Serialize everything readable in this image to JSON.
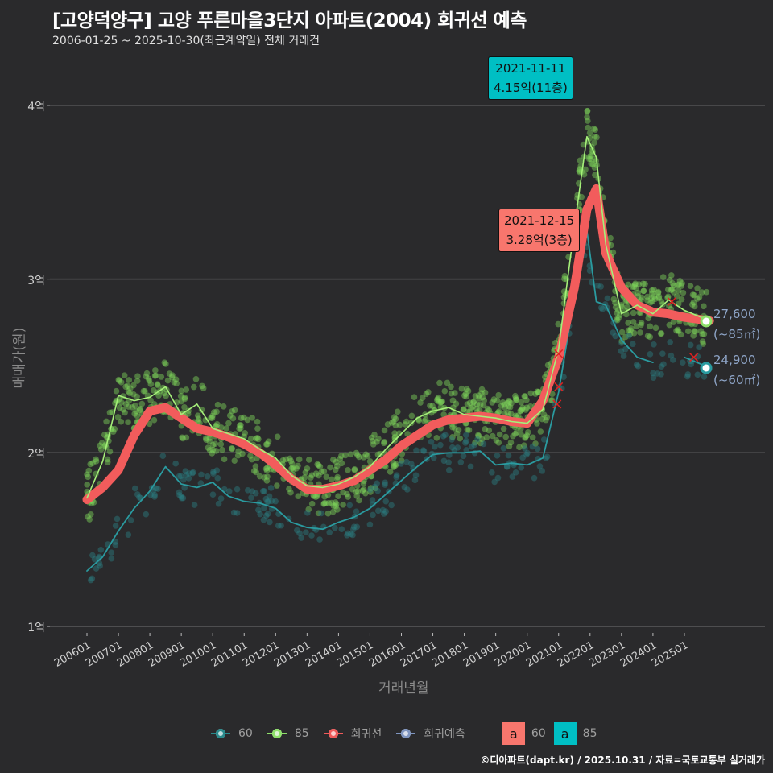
{
  "header": {
    "title": "[고양덕양구] 고양 푸른마을3단지 아파트(2004) 회귀선 예측",
    "subtitle": "2006-01-25 ~ 2025-10-30(최근계약일) 전체 거래건"
  },
  "axes": {
    "y_label": "매매가(원)",
    "x_label": "거래년월",
    "y_ticks": [
      "4억",
      "3억",
      "2억",
      "1억"
    ],
    "x_ticks": [
      "200601",
      "200701",
      "200801",
      "200901",
      "201001",
      "201101",
      "201201",
      "201301",
      "201401",
      "201501",
      "201601",
      "201701",
      "201801",
      "201901",
      "202001",
      "202101",
      "202201",
      "202301",
      "202401",
      "202501"
    ]
  },
  "callouts": {
    "max85": {
      "date": "2021-11-11",
      "value": "4.15억(11층)",
      "color": "#00bfc4"
    },
    "max60": {
      "date": "2021-12-15",
      "value": "3.28억(3층)",
      "color": "#f8766d"
    }
  },
  "end_labels": {
    "pred85": {
      "value": "27,600",
      "area": "(~85㎡)"
    },
    "pred60": {
      "value": "24,900",
      "area": "(~60㎡)"
    }
  },
  "legend": {
    "items": [
      {
        "label": "60",
        "color": "#2a8a8c"
      },
      {
        "label": "85",
        "color": "#8ee06a"
      },
      {
        "label": "회귀선",
        "color": "#f05a5a"
      },
      {
        "label": "회귀예측",
        "color": "#7f95c0"
      }
    ],
    "label_boxes": [
      {
        "glyph": "a",
        "label": "60",
        "color": "#f8766d"
      },
      {
        "glyph": "a",
        "label": "85",
        "color": "#00bfc4"
      }
    ]
  },
  "footer": "©디아파트(dapt.kr) / 2025.10.31 / 자료=국토교통부 실거래가",
  "chart_data": {
    "type": "line",
    "title": "[고양덕양구] 고양 푸른마을3단지 아파트(2004) 회귀선 예측",
    "subtitle": "2006-01-25 ~ 2025-10-30(최근계약일) 전체 거래건",
    "xlabel": "거래년월",
    "ylabel": "매매가(원)",
    "ylim": [
      1.0,
      4.25
    ],
    "y_unit": "억",
    "grid": true,
    "legend_position": "bottom",
    "x": [
      2006.0,
      2006.5,
      2007.0,
      2007.5,
      2008.0,
      2008.5,
      2009.0,
      2009.5,
      2010.0,
      2010.5,
      2011.0,
      2011.5,
      2012.0,
      2012.5,
      2013.0,
      2013.5,
      2014.0,
      2014.5,
      2015.0,
      2015.5,
      2016.0,
      2016.5,
      2017.0,
      2017.5,
      2018.0,
      2018.5,
      2019.0,
      2019.5,
      2020.0,
      2020.5,
      2021.0,
      2021.5,
      2021.9,
      2022.2,
      2022.5,
      2023.0,
      2023.5,
      2024.0,
      2024.5,
      2025.0,
      2025.8
    ],
    "series": [
      {
        "name": "회귀선",
        "values": [
          1.73,
          1.8,
          1.9,
          2.1,
          2.24,
          2.26,
          2.2,
          2.14,
          2.12,
          2.09,
          2.05,
          2.0,
          1.93,
          1.85,
          1.79,
          1.79,
          1.81,
          1.84,
          1.9,
          1.96,
          2.04,
          2.1,
          2.16,
          2.19,
          2.2,
          2.21,
          2.2,
          2.18,
          2.17,
          2.3,
          2.55,
          2.95,
          3.4,
          3.52,
          3.15,
          2.95,
          2.85,
          2.81,
          2.8,
          2.78,
          2.76
        ]
      },
      {
        "name": "85",
        "values": [
          1.74,
          1.95,
          2.33,
          2.3,
          2.32,
          2.38,
          2.22,
          2.28,
          2.14,
          2.11,
          2.08,
          2.02,
          1.97,
          1.87,
          1.81,
          1.8,
          1.82,
          1.86,
          1.92,
          2.02,
          2.11,
          2.2,
          2.24,
          2.26,
          2.22,
          2.21,
          2.2,
          2.18,
          2.17,
          2.25,
          2.6,
          3.3,
          3.82,
          3.7,
          3.2,
          2.8,
          2.85,
          2.8,
          2.88,
          2.82,
          2.76
        ]
      },
      {
        "name": "60",
        "values": [
          1.32,
          1.4,
          1.55,
          1.68,
          1.78,
          1.92,
          1.82,
          1.8,
          1.83,
          1.75,
          1.72,
          1.71,
          1.68,
          1.6,
          1.57,
          1.56,
          1.6,
          1.63,
          1.68,
          1.76,
          1.84,
          1.92,
          1.99,
          2.0,
          2.0,
          2.01,
          1.93,
          1.94,
          1.93,
          1.97,
          2.35,
          2.9,
          3.28,
          2.87,
          2.85,
          2.65,
          2.55,
          2.52,
          null,
          2.55,
          2.49
        ]
      }
    ],
    "annotations": [
      {
        "text": "2021-11-11 4.15억(11층)",
        "series": "85"
      },
      {
        "text": "2021-12-15 3.28억(3층)",
        "series": "60"
      },
      {
        "text": "27,600 (~85㎡)"
      },
      {
        "text": "24,900 (~60㎡)"
      }
    ]
  }
}
